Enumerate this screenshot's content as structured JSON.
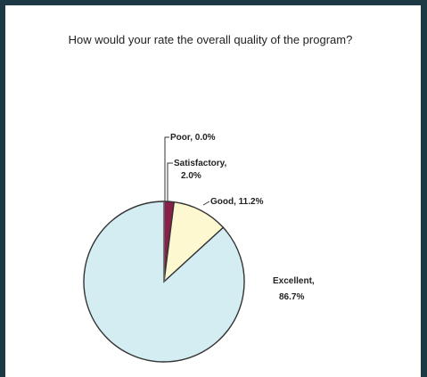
{
  "chart_data": {
    "type": "pie",
    "title": "How would your rate the overall quality of the program?",
    "slices": [
      {
        "label": "Poor, 0.0%",
        "name": "Poor",
        "value": 0.0,
        "color": "#6b6b6b"
      },
      {
        "label": "Satisfactory, 2.0%",
        "name": "Satisfactory",
        "value": 2.0,
        "color": "#8a1f4a"
      },
      {
        "label": "Good, 11.2%",
        "name": "Good",
        "value": 11.2,
        "color": "#fdf8d0"
      },
      {
        "label": "Excellent, 86.7%",
        "name": "Excellent",
        "value": 86.7,
        "color": "#d3edf3"
      }
    ],
    "legend": "none",
    "label_style": "callout"
  },
  "colors": {
    "frame": "#1d3a44",
    "outline": "#333333"
  }
}
